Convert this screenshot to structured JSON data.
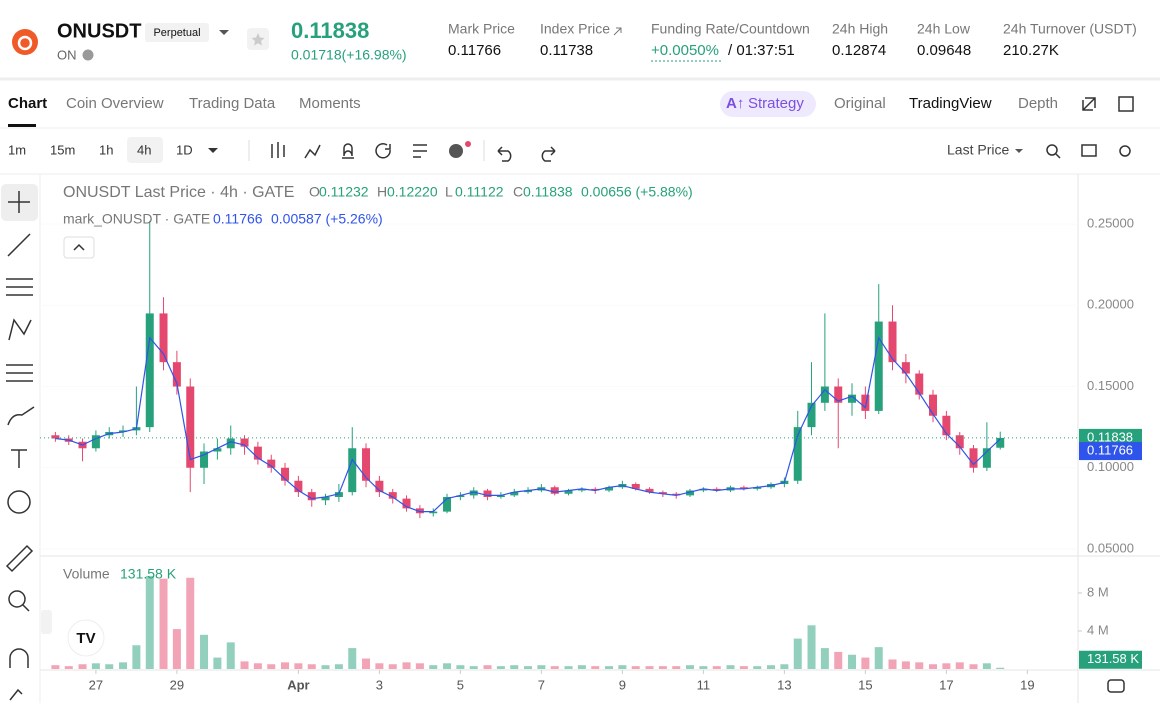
{
  "header": {
    "symbol": "ONUSDT",
    "badge": "Perpetual",
    "base": "ON",
    "last_price": "0.11838",
    "change": "0.01718(+16.98%)",
    "stats": [
      {
        "label": "Mark Price",
        "value": "0.11766"
      },
      {
        "label": "Index Price",
        "value": "0.11738"
      },
      {
        "label": "Funding Rate/Countdown",
        "value": "+0.0050%",
        "extra": "/ 01:37:51"
      },
      {
        "label": "24h High",
        "value": "0.12874"
      },
      {
        "label": "24h Low",
        "value": "0.09648"
      },
      {
        "label": "24h Turnover (USDT)",
        "value": "210.27K"
      }
    ]
  },
  "tabs": [
    "Chart",
    "Coin Overview",
    "Trading Data",
    "Moments"
  ],
  "views": [
    "Strategy",
    "Original",
    "TradingView",
    "Depth"
  ],
  "intervals": [
    "1m",
    "15m",
    "1h",
    "4h",
    "1D"
  ],
  "price_type": "Last Price",
  "legend": {
    "title": "ONUSDT Last Price · 4h · GATE",
    "ohlc": [
      {
        "label": "O",
        "value": "0.11232"
      },
      {
        "label": "H",
        "value": "0.12220"
      },
      {
        "label": "L",
        "value": "0.11122"
      },
      {
        "label": "C",
        "value": "0.11838"
      }
    ],
    "change": "0.00656 (+5.88%)",
    "mark_title": "mark_ONUSDT · GATE",
    "mark_value": "0.11766",
    "mark_change": "0.00587 (+5.26%)",
    "volume_title": "Volume",
    "volume_value": "131.58 K"
  },
  "chart_data": {
    "type": "candlestick",
    "up_color": "#26a17b",
    "down_color": "#e5486e",
    "x": [
      26,
      26.33,
      26.67,
      27,
      27.33,
      27.67,
      28,
      28.33,
      28.67,
      29,
      29.33,
      29.67,
      30,
      30.33,
      30.67,
      31,
      31.33,
      31.67,
      32,
      32.33,
      32.67,
      33,
      33.33,
      33.67,
      34,
      34.33,
      34.67,
      35,
      35.33,
      35.67,
      36,
      36.33,
      36.67,
      37,
      37.33,
      37.67,
      38,
      38.33,
      38.67,
      39,
      39.33,
      39.67,
      40,
      40.33,
      40.67,
      41,
      41.33,
      41.67,
      42,
      42.33,
      42.67,
      43,
      43.33,
      43.67,
      44,
      44.33,
      44.67,
      45,
      45.33,
      45.67,
      46,
      46.33,
      46.67,
      47,
      47.33,
      47.67,
      48,
      48.33,
      48.67,
      49,
      49.33
    ],
    "open": [
      0.12,
      0.118,
      0.116,
      0.112,
      0.12,
      0.122,
      0.123,
      0.125,
      0.195,
      0.165,
      0.15,
      0.1,
      0.11,
      0.112,
      0.118,
      0.113,
      0.105,
      0.1,
      0.092,
      0.085,
      0.08,
      0.082,
      0.085,
      0.112,
      0.092,
      0.085,
      0.081,
      0.075,
      0.072,
      0.073,
      0.082,
      0.083,
      0.086,
      0.082,
      0.083,
      0.085,
      0.086,
      0.088,
      0.084,
      0.086,
      0.087,
      0.086,
      0.088,
      0.09,
      0.087,
      0.085,
      0.084,
      0.083,
      0.086,
      0.087,
      0.086,
      0.088,
      0.087,
      0.088,
      0.09,
      0.092,
      0.125,
      0.14,
      0.15,
      0.14,
      0.145,
      0.135,
      0.19,
      0.165,
      0.158,
      0.145,
      0.132,
      0.12,
      0.112,
      0.1,
      0.11232
    ],
    "high": [
      0.122,
      0.12,
      0.118,
      0.123,
      0.125,
      0.126,
      0.15,
      0.252,
      0.205,
      0.172,
      0.155,
      0.115,
      0.118,
      0.126,
      0.12,
      0.116,
      0.108,
      0.103,
      0.095,
      0.087,
      0.084,
      0.09,
      0.125,
      0.115,
      0.095,
      0.087,
      0.083,
      0.077,
      0.075,
      0.084,
      0.085,
      0.088,
      0.087,
      0.085,
      0.087,
      0.088,
      0.09,
      0.089,
      0.087,
      0.088,
      0.088,
      0.089,
      0.092,
      0.091,
      0.088,
      0.086,
      0.085,
      0.087,
      0.088,
      0.088,
      0.089,
      0.089,
      0.089,
      0.091,
      0.094,
      0.135,
      0.165,
      0.195,
      0.155,
      0.152,
      0.15,
      0.213,
      0.2,
      0.17,
      0.16,
      0.148,
      0.135,
      0.122,
      0.114,
      0.128,
      0.1222
    ],
    "low": [
      0.116,
      0.114,
      0.104,
      0.11,
      0.118,
      0.119,
      0.12,
      0.122,
      0.16,
      0.145,
      0.085,
      0.09,
      0.105,
      0.108,
      0.108,
      0.102,
      0.097,
      0.089,
      0.082,
      0.076,
      0.077,
      0.079,
      0.083,
      0.088,
      0.082,
      0.078,
      0.073,
      0.069,
      0.07,
      0.072,
      0.08,
      0.081,
      0.08,
      0.081,
      0.082,
      0.084,
      0.085,
      0.083,
      0.083,
      0.085,
      0.084,
      0.085,
      0.087,
      0.086,
      0.084,
      0.082,
      0.081,
      0.082,
      0.085,
      0.085,
      0.085,
      0.086,
      0.086,
      0.087,
      0.088,
      0.09,
      0.12,
      0.135,
      0.112,
      0.132,
      0.13,
      0.133,
      0.16,
      0.152,
      0.142,
      0.128,
      0.117,
      0.108,
      0.097,
      0.098,
      0.11122
    ],
    "close": [
      0.118,
      0.116,
      0.112,
      0.12,
      0.122,
      0.123,
      0.125,
      0.195,
      0.165,
      0.15,
      0.1,
      0.11,
      0.112,
      0.118,
      0.113,
      0.105,
      0.1,
      0.092,
      0.085,
      0.08,
      0.082,
      0.085,
      0.112,
      0.092,
      0.085,
      0.081,
      0.075,
      0.072,
      0.073,
      0.082,
      0.083,
      0.086,
      0.082,
      0.083,
      0.085,
      0.086,
      0.088,
      0.084,
      0.086,
      0.087,
      0.086,
      0.088,
      0.09,
      0.087,
      0.085,
      0.084,
      0.083,
      0.086,
      0.087,
      0.086,
      0.088,
      0.087,
      0.088,
      0.09,
      0.092,
      0.125,
      0.14,
      0.15,
      0.14,
      0.145,
      0.135,
      0.19,
      0.165,
      0.158,
      0.145,
      0.132,
      0.12,
      0.112,
      0.1,
      0.112,
      0.11838
    ],
    "mark": {
      "color": "#2f54eb",
      "values": [
        0.118,
        0.117,
        0.114,
        0.118,
        0.121,
        0.122,
        0.124,
        0.18,
        0.17,
        0.152,
        0.105,
        0.108,
        0.112,
        0.116,
        0.114,
        0.106,
        0.101,
        0.093,
        0.086,
        0.081,
        0.082,
        0.084,
        0.105,
        0.094,
        0.086,
        0.082,
        0.076,
        0.073,
        0.073,
        0.081,
        0.083,
        0.085,
        0.083,
        0.083,
        0.085,
        0.086,
        0.087,
        0.085,
        0.086,
        0.087,
        0.086,
        0.088,
        0.089,
        0.087,
        0.085,
        0.084,
        0.083,
        0.085,
        0.087,
        0.086,
        0.087,
        0.087,
        0.088,
        0.089,
        0.091,
        0.12,
        0.138,
        0.148,
        0.141,
        0.144,
        0.137,
        0.18,
        0.167,
        0.158,
        0.146,
        0.133,
        0.121,
        0.113,
        0.102,
        0.11,
        0.11766
      ]
    },
    "volume": [
      400000,
      300000,
      500000,
      600000,
      500000,
      700000,
      2500000,
      9800000,
      9500000,
      4200000,
      9600000,
      3600000,
      1200000,
      2800000,
      800000,
      600000,
      500000,
      700000,
      600000,
      500000,
      400000,
      500000,
      2200000,
      1100000,
      600000,
      500000,
      700000,
      600000,
      400000,
      600000,
      400000,
      300000,
      400000,
      300000,
      400000,
      300000,
      400000,
      300000,
      300000,
      400000,
      300000,
      300000,
      400000,
      300000,
      300000,
      300000,
      300000,
      400000,
      300000,
      300000,
      400000,
      300000,
      300000,
      400000,
      500000,
      3200000,
      4600000,
      2200000,
      1800000,
      1500000,
      1200000,
      2300000,
      1000000,
      800000,
      700000,
      500000,
      600000,
      700000,
      500000,
      600000,
      131580
    ],
    "xlim": [
      25.62,
      51.25
    ],
    "xticks": [
      27,
      29,
      {
        "value": 32,
        "label": "Apr"
      },
      {
        "value": 34,
        "label": "3"
      },
      {
        "value": 36,
        "label": "5"
      },
      {
        "value": 38,
        "label": "7"
      },
      {
        "value": 40,
        "label": "9"
      },
      {
        "value": 42,
        "label": "11"
      },
      {
        "value": 44,
        "label": "13"
      },
      {
        "value": 46,
        "label": "15"
      },
      {
        "value": 48,
        "label": "17"
      },
      {
        "value": 50,
        "label": "19"
      }
    ],
    "ylim": [
      0.0463,
      0.2802
    ],
    "yticks": [
      {
        "value": 0.05,
        "label": "0.05000"
      },
      {
        "value": 0.1,
        "label": "0.10000"
      },
      {
        "value": 0.15,
        "label": "0.15000"
      },
      {
        "value": 0.2,
        "label": "0.20000"
      },
      {
        "value": 0.25,
        "label": "0.25000"
      }
    ],
    "volume_ylim": [
      0,
      11470000
    ],
    "volume_yticks": [
      {
        "value": 4000000,
        "label": "4 M"
      },
      {
        "value": 8000000,
        "label": "8 M"
      }
    ],
    "last_price": {
      "value": 0.11838,
      "label": "0.11838",
      "color": "#26a17b"
    },
    "mark_price": {
      "value": 0.11766,
      "label": "0.11766",
      "color": "#2f54eb"
    },
    "last_volume": {
      "value": 131580,
      "label": "131.58 K"
    }
  }
}
